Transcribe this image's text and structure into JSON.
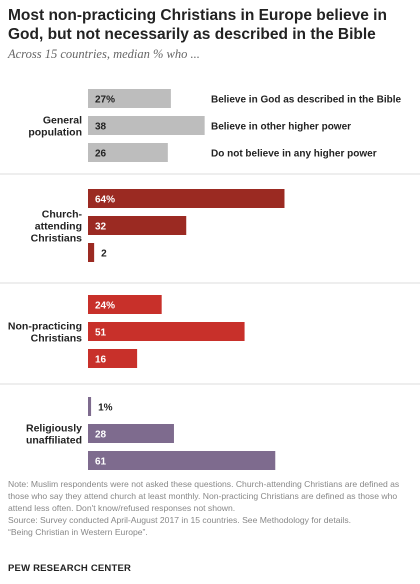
{
  "title": "Most non-practicing Christians in Europe believe in God, but not necessarily as described in the Bible",
  "subtitle": "Across 15 countries, median % who ...",
  "chart_data": {
    "type": "bar",
    "orientation": "horizontal",
    "categories": [
      "Believe in God as described in the Bible",
      "Believe in other higher power",
      "Do not believe in any higher power"
    ],
    "groups": [
      {
        "label_lines": [
          "General",
          "population"
        ],
        "color": "#bdbdbd",
        "values": [
          27,
          38,
          26
        ],
        "value_labels": [
          "27%",
          "38",
          "26"
        ]
      },
      {
        "label_lines": [
          "Church-",
          "attending",
          "Christians"
        ],
        "color": "#9b2a22",
        "values": [
          64,
          32,
          2
        ],
        "value_labels": [
          "64%",
          "32",
          "2"
        ]
      },
      {
        "label_lines": [
          "Non-practicing",
          "Christians"
        ],
        "color": "#c8302a",
        "values": [
          24,
          51,
          16
        ],
        "value_labels": [
          "24%",
          "51",
          "16"
        ]
      },
      {
        "label_lines": [
          "Religiously",
          "unaffiliated"
        ],
        "color": "#7e6b8e",
        "values": [
          1,
          28,
          61
        ],
        "value_labels": [
          "1%",
          "28",
          "61"
        ]
      }
    ],
    "separator_color": "#dddddd"
  },
  "footer": {
    "note": "Note: Muslim respondents were not asked these questions. Church-attending Christians are defined as those who say they attend church at least monthly. Non-practicing Christians are defined as those who attend less often. Don't know/refused responses not shown.",
    "source": "Source: Survey conducted April-August 2017 in 15 countries. See Methodology for details.",
    "report": "“Being Christian in Western Europe”.",
    "brand": "PEW RESEARCH CENTER"
  }
}
